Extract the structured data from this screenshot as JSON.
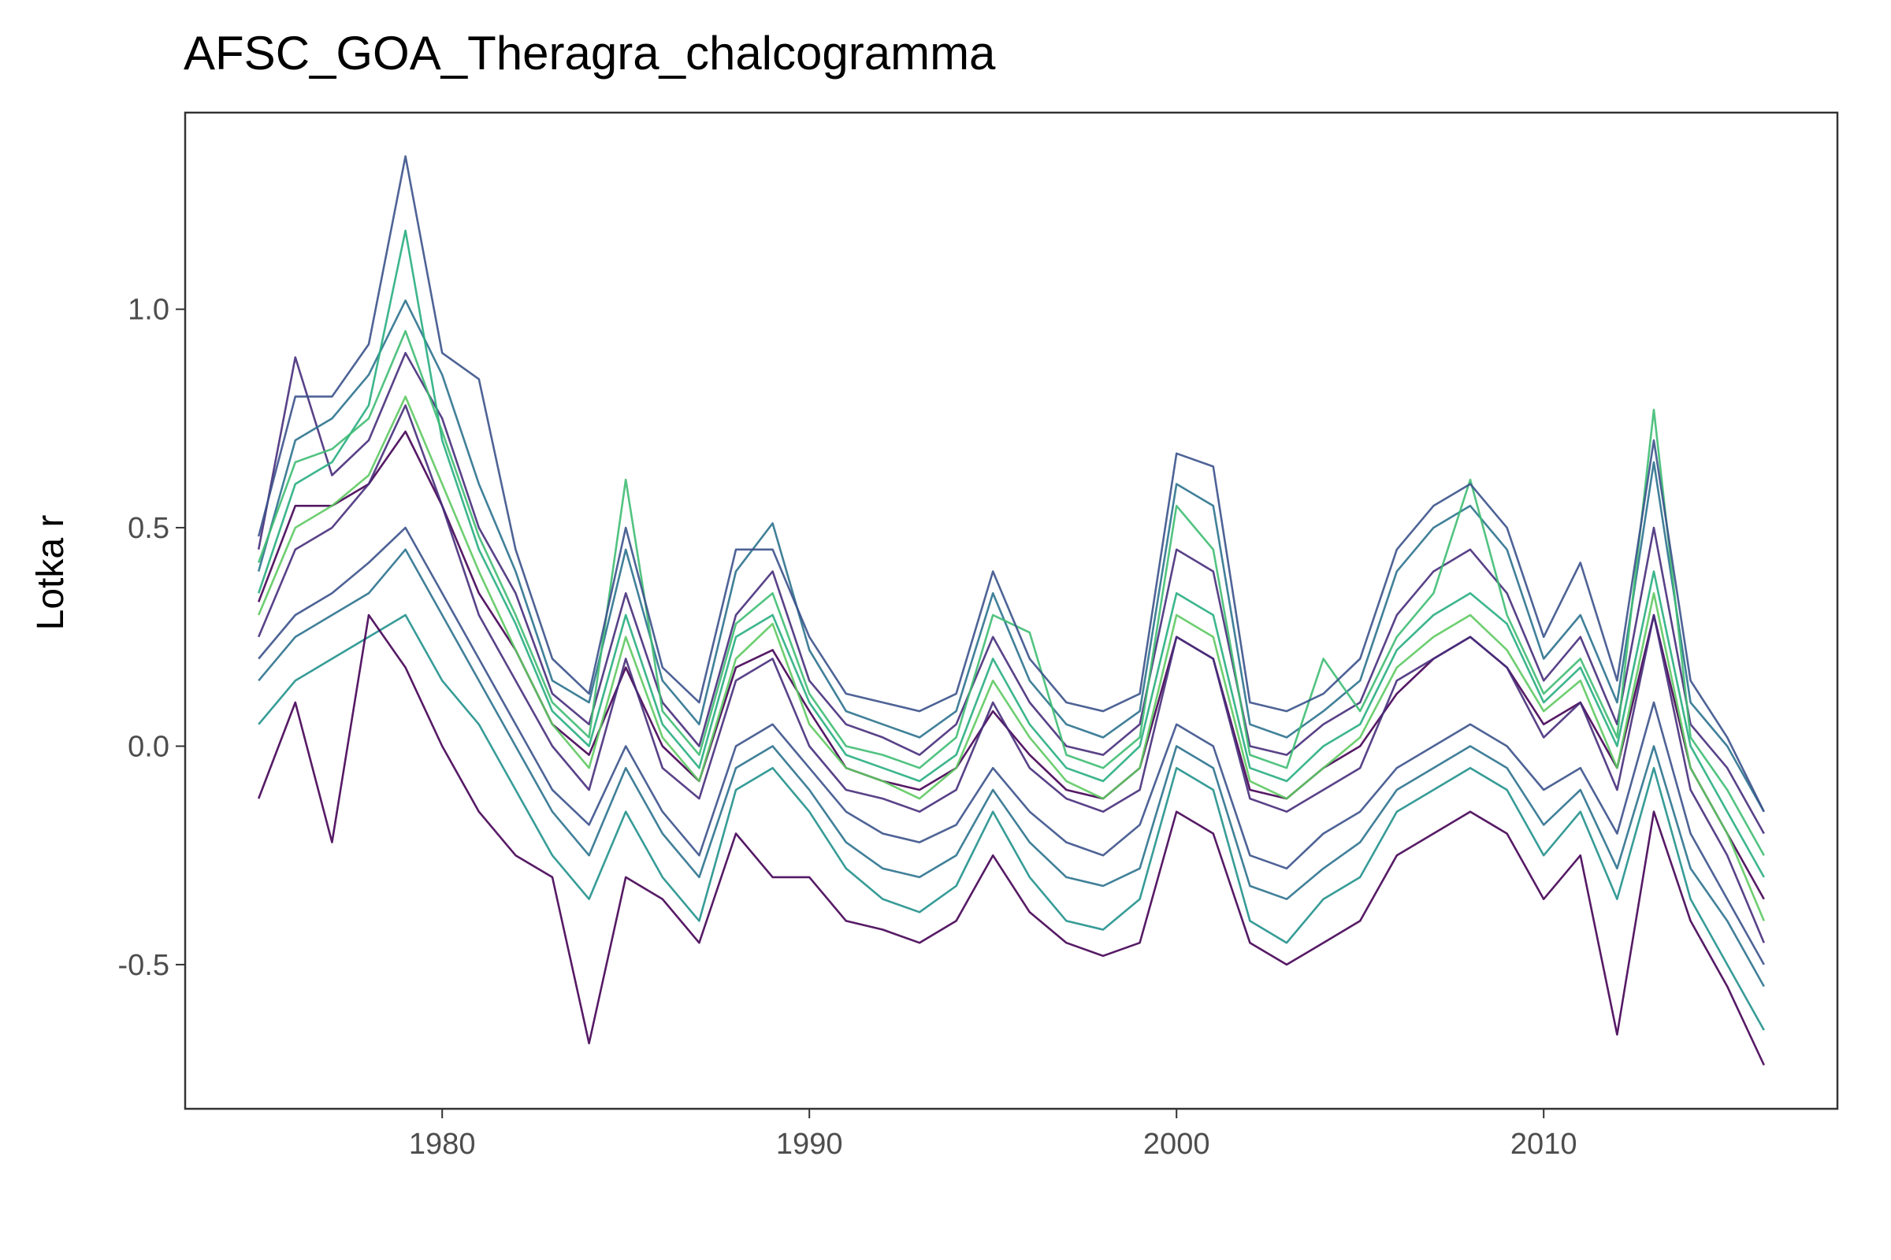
{
  "chart_data": {
    "type": "line",
    "title": "AFSC_GOA_Theragra_chalcogramma",
    "xlabel": "",
    "ylabel": "Lotka r",
    "xlim": [
      1973,
      2018
    ],
    "ylim": [
      -0.83,
      1.45
    ],
    "x_ticks": [
      1980,
      1990,
      2000,
      2010
    ],
    "y_ticks": [
      -0.5,
      0.0,
      0.5,
      1.0
    ],
    "y_tick_labels": [
      "-0.5",
      "0.0",
      "0.5",
      "1.0"
    ],
    "grid": false,
    "legend": "none",
    "palette": [
      "#440154",
      "#472d7b",
      "#3b528b",
      "#2c728e",
      "#21918c",
      "#28ae80",
      "#3fbc73",
      "#5ec962"
    ],
    "x": [
      1975,
      1976,
      1977,
      1978,
      1979,
      1980,
      1981,
      1982,
      1983,
      1984,
      1985,
      1986,
      1987,
      1988,
      1989,
      1990,
      1991,
      1992,
      1993,
      1994,
      1995,
      1996,
      1997,
      1998,
      1999,
      2000,
      2001,
      2002,
      2003,
      2004,
      2005,
      2006,
      2007,
      2008,
      2009,
      2010,
      2011,
      2012,
      2013,
      2014,
      2015,
      2016
    ],
    "series": [
      {
        "values": [
          0.33,
          0.55,
          0.55,
          0.6,
          0.72,
          0.55,
          0.35,
          0.22,
          0.05,
          -0.02,
          0.18,
          0.0,
          -0.08,
          0.18,
          0.22,
          0.08,
          -0.05,
          -0.08,
          -0.1,
          -0.05,
          0.08,
          -0.02,
          -0.1,
          -0.12,
          -0.05,
          0.25,
          0.2,
          -0.1,
          -0.12,
          -0.05,
          0.0,
          0.12,
          0.2,
          0.25,
          0.18,
          0.05,
          0.1,
          -0.05,
          0.3,
          -0.05,
          -0.2,
          -0.35
        ]
      },
      {
        "values": [
          0.45,
          0.89,
          0.62,
          0.7,
          0.9,
          0.75,
          0.5,
          0.35,
          0.12,
          0.05,
          0.35,
          0.1,
          0.0,
          0.3,
          0.4,
          0.15,
          0.05,
          0.02,
          -0.02,
          0.05,
          0.25,
          0.1,
          0.0,
          -0.02,
          0.05,
          0.45,
          0.4,
          0.0,
          -0.02,
          0.05,
          0.1,
          0.3,
          0.4,
          0.45,
          0.35,
          0.15,
          0.25,
          0.05,
          0.5,
          0.05,
          -0.05,
          -0.2
        ]
      },
      {
        "values": [
          0.2,
          0.3,
          0.35,
          0.42,
          0.5,
          0.35,
          0.2,
          0.05,
          -0.1,
          -0.18,
          0.0,
          -0.15,
          -0.25,
          0.0,
          0.05,
          -0.05,
          -0.15,
          -0.2,
          -0.22,
          -0.18,
          -0.05,
          -0.15,
          -0.22,
          -0.25,
          -0.18,
          0.05,
          0.0,
          -0.25,
          -0.28,
          -0.2,
          -0.15,
          -0.05,
          0.0,
          0.05,
          0.0,
          -0.1,
          -0.05,
          -0.2,
          0.1,
          -0.2,
          -0.35,
          -0.5
        ]
      },
      {
        "values": [
          0.4,
          0.7,
          0.75,
          0.85,
          1.02,
          0.85,
          0.6,
          0.4,
          0.15,
          0.1,
          0.45,
          0.15,
          0.05,
          0.4,
          0.51,
          0.22,
          0.08,
          0.05,
          0.02,
          0.08,
          0.35,
          0.15,
          0.05,
          0.02,
          0.08,
          0.6,
          0.55,
          0.05,
          0.02,
          0.08,
          0.15,
          0.4,
          0.5,
          0.55,
          0.45,
          0.2,
          0.3,
          0.1,
          0.65,
          0.1,
          0.0,
          -0.15
        ]
      },
      {
        "values": [
          0.05,
          0.15,
          0.2,
          0.25,
          0.3,
          0.15,
          0.05,
          -0.1,
          -0.25,
          -0.35,
          -0.15,
          -0.3,
          -0.4,
          -0.1,
          -0.05,
          -0.15,
          -0.28,
          -0.35,
          -0.38,
          -0.32,
          -0.15,
          -0.3,
          -0.4,
          -0.42,
          -0.35,
          -0.05,
          -0.1,
          -0.4,
          -0.45,
          -0.35,
          -0.3,
          -0.15,
          -0.1,
          -0.05,
          -0.1,
          -0.25,
          -0.15,
          -0.35,
          -0.05,
          -0.35,
          -0.5,
          -0.65
        ]
      },
      {
        "values": [
          0.35,
          0.6,
          0.65,
          0.78,
          1.18,
          0.7,
          0.45,
          0.28,
          0.08,
          0.0,
          0.3,
          0.05,
          -0.05,
          0.25,
          0.3,
          0.1,
          -0.02,
          -0.05,
          -0.08,
          -0.02,
          0.2,
          0.05,
          -0.05,
          -0.08,
          0.0,
          0.35,
          0.3,
          -0.05,
          -0.08,
          0.0,
          0.05,
          0.22,
          0.3,
          0.35,
          0.28,
          0.1,
          0.18,
          0.0,
          0.4,
          0.0,
          -0.15,
          -0.3
        ]
      },
      {
        "values": [
          0.42,
          0.65,
          0.68,
          0.75,
          0.95,
          0.72,
          0.48,
          0.3,
          0.1,
          0.02,
          0.61,
          0.08,
          -0.02,
          0.28,
          0.35,
          0.12,
          0.0,
          -0.02,
          -0.05,
          0.02,
          0.3,
          0.26,
          -0.02,
          -0.05,
          0.02,
          0.55,
          0.45,
          -0.02,
          -0.05,
          0.2,
          0.08,
          0.25,
          0.35,
          0.61,
          0.3,
          0.12,
          0.2,
          0.02,
          0.77,
          0.02,
          -0.1,
          -0.25
        ]
      },
      {
        "values": [
          0.3,
          0.5,
          0.55,
          0.62,
          0.8,
          0.6,
          0.4,
          0.22,
          0.05,
          -0.05,
          0.25,
          0.02,
          -0.08,
          0.2,
          0.28,
          0.05,
          -0.05,
          -0.08,
          -0.12,
          -0.05,
          0.15,
          0.02,
          -0.08,
          -0.12,
          -0.05,
          0.3,
          0.25,
          -0.08,
          -0.12,
          -0.05,
          0.02,
          0.18,
          0.25,
          0.3,
          0.22,
          0.08,
          0.15,
          -0.05,
          0.35,
          -0.05,
          -0.2,
          -0.4
        ]
      },
      {
        "values": [
          -0.12,
          0.1,
          -0.22,
          0.3,
          0.18,
          0.0,
          -0.15,
          -0.25,
          -0.3,
          -0.68,
          -0.3,
          -0.35,
          -0.45,
          -0.2,
          -0.3,
          -0.3,
          -0.4,
          -0.42,
          -0.45,
          -0.4,
          -0.25,
          -0.38,
          -0.45,
          -0.48,
          -0.45,
          -0.15,
          -0.2,
          -0.45,
          -0.5,
          -0.45,
          -0.4,
          -0.25,
          -0.2,
          -0.15,
          -0.2,
          -0.35,
          -0.25,
          -0.66,
          -0.15,
          -0.4,
          -0.55,
          -0.73
        ]
      },
      {
        "values": [
          0.25,
          0.45,
          0.5,
          0.6,
          0.78,
          0.55,
          0.3,
          0.15,
          0.0,
          -0.1,
          0.2,
          -0.05,
          -0.12,
          0.15,
          0.2,
          0.0,
          -0.1,
          -0.12,
          -0.15,
          -0.1,
          0.1,
          -0.05,
          -0.12,
          -0.15,
          -0.1,
          0.25,
          0.2,
          -0.12,
          -0.15,
          -0.1,
          -0.05,
          0.15,
          0.2,
          0.25,
          0.18,
          0.02,
          0.1,
          -0.1,
          0.3,
          -0.1,
          -0.25,
          -0.45
        ]
      },
      {
        "values": [
          0.48,
          0.8,
          0.8,
          0.92,
          1.35,
          0.9,
          0.84,
          0.45,
          0.2,
          0.12,
          0.5,
          0.18,
          0.1,
          0.45,
          0.45,
          0.25,
          0.12,
          0.1,
          0.08,
          0.12,
          0.4,
          0.2,
          0.1,
          0.08,
          0.12,
          0.67,
          0.64,
          0.1,
          0.08,
          0.12,
          0.2,
          0.45,
          0.55,
          0.6,
          0.5,
          0.25,
          0.42,
          0.15,
          0.7,
          0.15,
          0.02,
          -0.15
        ]
      },
      {
        "values": [
          0.15,
          0.25,
          0.3,
          0.35,
          0.45,
          0.3,
          0.15,
          0.0,
          -0.15,
          -0.25,
          -0.05,
          -0.2,
          -0.3,
          -0.05,
          0.0,
          -0.1,
          -0.22,
          -0.28,
          -0.3,
          -0.25,
          -0.1,
          -0.22,
          -0.3,
          -0.32,
          -0.28,
          0.0,
          -0.05,
          -0.32,
          -0.35,
          -0.28,
          -0.22,
          -0.1,
          -0.05,
          0.0,
          -0.05,
          -0.18,
          -0.1,
          -0.28,
          0.0,
          -0.28,
          -0.4,
          -0.55
        ]
      }
    ]
  }
}
